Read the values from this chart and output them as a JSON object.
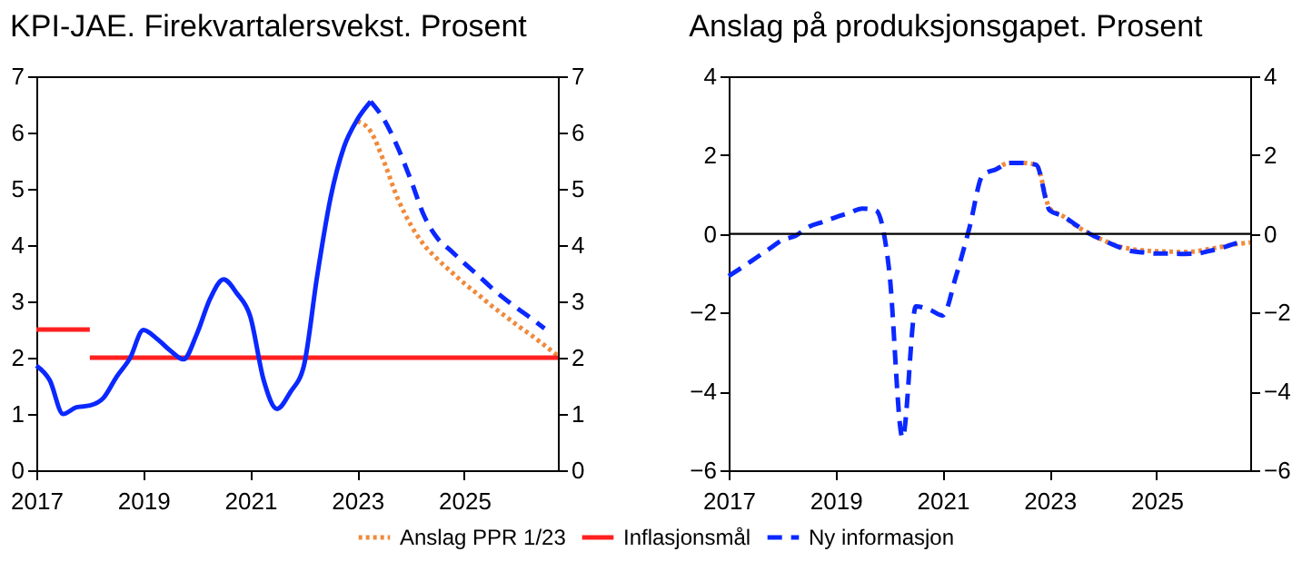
{
  "chart_data": [
    {
      "type": "line",
      "title": "KPI-JAE. Firekvartalersvekst. Prosent",
      "xlim": [
        2017,
        2026.75
      ],
      "xticks": [
        2017,
        2019,
        2021,
        2023,
        2025
      ],
      "ylim": [
        0,
        7
      ],
      "yticks": [
        0,
        1,
        2,
        3,
        4,
        5,
        6,
        7
      ],
      "y2lim": [
        0,
        7
      ],
      "y2ticks": [
        0,
        1,
        2,
        3,
        4,
        5,
        6,
        7
      ],
      "grid": false,
      "legend": "bottom",
      "series": [
        {
          "name": "Anslag PPR 1/23",
          "color": "#f08a3c",
          "line_style": "dotted",
          "x": [
            2023,
            2023.25,
            2023.5,
            2023.75,
            2024,
            2024.25,
            2024.5,
            2024.75,
            2025,
            2025.25,
            2025.5,
            2025.75,
            2026,
            2026.25,
            2026.5,
            2026.75
          ],
          "values": [
            6.2,
            6.02,
            5.48,
            4.84,
            4.36,
            4.0,
            3.75,
            3.53,
            3.32,
            3.13,
            2.93,
            2.75,
            2.57,
            2.4,
            2.22,
            2.03
          ]
        },
        {
          "name": "Inflasjonsmål",
          "color": "#ff2020",
          "line_style": "solid",
          "x": [
            2017,
            2018,
            null,
            2018,
            2026.75
          ],
          "values": [
            2.5,
            2.5,
            null,
            2,
            2
          ]
        },
        {
          "color": "#0a28ff",
          "line_style": "solid",
          "x": [
            2017,
            2017.25,
            2017.5,
            2017.75,
            2018,
            2018.25,
            2018.5,
            2018.75,
            2019,
            2019.25,
            2019.5,
            2019.75,
            2020,
            2020.25,
            2020.5,
            2020.75,
            2021,
            2021.25,
            2021.5,
            2021.75,
            2022,
            2022.25,
            2022.5,
            2022.75,
            2023,
            2023.25
          ],
          "values": [
            1.86,
            1.6,
            1.0,
            1.12,
            1.15,
            1.28,
            1.66,
            1.99,
            2.49,
            2.34,
            2.13,
            1.97,
            2.42,
            3.05,
            3.39,
            3.14,
            2.73,
            1.6,
            1.09,
            1.39,
            1.85,
            3.45,
            4.84,
            5.74,
            6.23,
            6.55
          ]
        },
        {
          "name": "Ny informasjon",
          "color": "#0a28ff",
          "line_style": "dashed",
          "x": [
            2023.25,
            2023.5,
            2023.75,
            2024,
            2024.25,
            2024.5,
            2024.75,
            2025,
            2025.25,
            2025.5,
            2025.75,
            2026,
            2026.25,
            2026.5
          ],
          "values": [
            6.55,
            6.23,
            5.75,
            5.16,
            4.52,
            4.12,
            3.9,
            3.68,
            3.47,
            3.25,
            3.05,
            2.87,
            2.7,
            2.52
          ]
        }
      ]
    },
    {
      "type": "line",
      "title": "Anslag på produksjonsgapet. Prosent",
      "xlim": [
        2017,
        2026.75
      ],
      "xticks": [
        2017,
        2019,
        2021,
        2023,
        2025
      ],
      "ylim": [
        -6,
        4
      ],
      "yticks": [
        -6,
        -4,
        -2,
        0,
        2,
        4
      ],
      "y2lim": [
        -6,
        4
      ],
      "y2ticks": [
        -6,
        -4,
        -2,
        0,
        2,
        4
      ],
      "grid": false,
      "ref_lines": [
        {
          "axis": "y",
          "value": 0,
          "color": "#000000"
        }
      ],
      "series": [
        {
          "color": "#f08a3c",
          "line_style": "dotted",
          "x": [
            2022,
            2022.25,
            2022.5,
            2022.75,
            2023,
            2023.25,
            2023.5,
            2023.75,
            2024,
            2024.25,
            2024.5,
            2024.75,
            2025,
            2025.25,
            2025.5,
            2025.75,
            2026,
            2026.25,
            2026.5,
            2026.75
          ],
          "values": [
            1.64,
            1.8,
            1.8,
            1.75,
            0.65,
            0.45,
            0.2,
            0,
            -0.16,
            -0.3,
            -0.38,
            -0.42,
            -0.44,
            -0.45,
            -0.46,
            -0.44,
            -0.38,
            -0.32,
            -0.26,
            -0.22
          ]
        },
        {
          "color": "#0a28ff",
          "line_style": "dashed",
          "x": [
            2017,
            2017.25,
            2017.5,
            2017.75,
            2018,
            2018.25,
            2018.5,
            2018.75,
            2019,
            2019.25,
            2019.5,
            2019.75,
            2020,
            2020.25,
            2020.5,
            2020.75,
            2021,
            2021.25,
            2021.5,
            2021.75,
            2022,
            2022.25,
            2022.5,
            2022.75,
            2023,
            2023.25,
            2023.5,
            2023.75,
            2024,
            2024.25,
            2024.5,
            2024.75,
            2025,
            2025.25,
            2025.5,
            2025.75,
            2026,
            2026.25,
            2026.5
          ],
          "values": [
            -1.07,
            -0.85,
            -0.62,
            -0.39,
            -0.16,
            -0.05,
            0.18,
            0.3,
            0.42,
            0.53,
            0.64,
            0.6,
            -0.92,
            -5.17,
            -1.84,
            -1.92,
            -2.07,
            -1.07,
            0.15,
            1.49,
            1.64,
            1.8,
            1.8,
            1.75,
            0.6,
            0.45,
            0.22,
            0,
            -0.16,
            -0.31,
            -0.43,
            -0.47,
            -0.5,
            -0.5,
            -0.51,
            -0.5,
            -0.43,
            -0.34,
            -0.23
          ]
        }
      ]
    }
  ]
}
